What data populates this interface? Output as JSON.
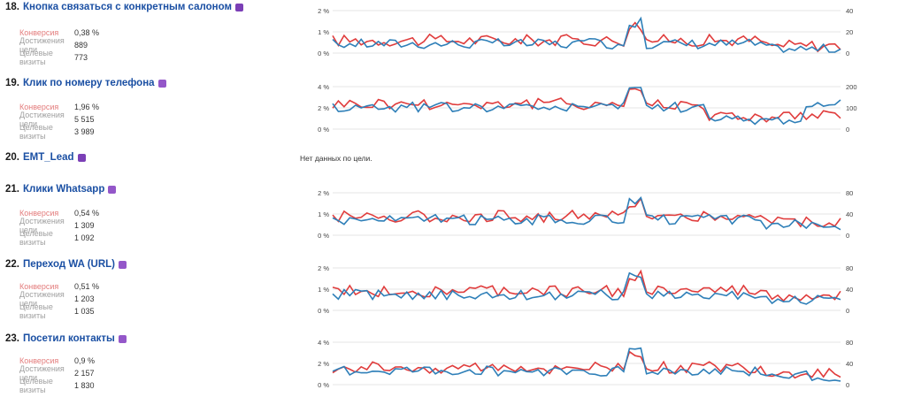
{
  "labels": {
    "conversion": "Конверсия",
    "goal_reached": "Достижения цели",
    "target_visits": "Целевые визиты"
  },
  "colors": {
    "conversion_line": "#e03c3c",
    "visits_line": "#2e7fb8",
    "grid": "#e4e4e4",
    "title": "#1a4fa3",
    "badge": "#7b3fb6"
  },
  "goals": [
    {
      "number": "18.",
      "name": "Кнопка связаться с конкретным салоном",
      "badge_icon": "info-icon",
      "conversion": "0,38 %",
      "goal_reached": "889",
      "target_visits": "773",
      "has_data": true,
      "left_ticks": [
        "2 %",
        "1 %",
        "0 %"
      ],
      "right_ticks": [
        "40",
        "20",
        "0"
      ]
    },
    {
      "number": "19.",
      "name": "Клик по номеру телефона",
      "badge_icon": "phone-icon",
      "conversion": "1,96 %",
      "goal_reached": "5 515",
      "target_visits": "3 989",
      "has_data": true,
      "left_ticks": [
        "4 %",
        "2 %",
        "0 %"
      ],
      "right_ticks": [
        "200",
        "100",
        "0"
      ]
    },
    {
      "number": "20.",
      "name": "EMT_Lead",
      "badge_icon": "info-icon",
      "has_data": false,
      "no_data_text": "Нет данных по цели."
    },
    {
      "number": "21.",
      "name": "Клики Whatsapp",
      "badge_icon": "click-icon",
      "conversion": "0,54 %",
      "goal_reached": "1 309",
      "target_visits": "1 092",
      "has_data": true,
      "left_ticks": [
        "2 %",
        "1 %",
        "0 %"
      ],
      "right_ticks": [
        "80",
        "40",
        "0"
      ]
    },
    {
      "number": "22.",
      "name": "Переход WA (URL)",
      "badge_icon": "url-icon",
      "conversion": "0,51 %",
      "goal_reached": "1 203",
      "target_visits": "1 035",
      "has_data": true,
      "left_ticks": [
        "2 %",
        "1 %",
        "0 %"
      ],
      "right_ticks": [
        "80",
        "40",
        "0"
      ]
    },
    {
      "number": "23.",
      "name": "Посетил контакты",
      "badge_icon": "url-icon",
      "conversion": "0,9 %",
      "goal_reached": "2 157",
      "target_visits": "1 830",
      "has_data": true,
      "left_ticks": [
        "4 %",
        "2 %",
        "0 %"
      ],
      "right_ticks": [
        "80",
        "40",
        "0"
      ]
    }
  ]
}
